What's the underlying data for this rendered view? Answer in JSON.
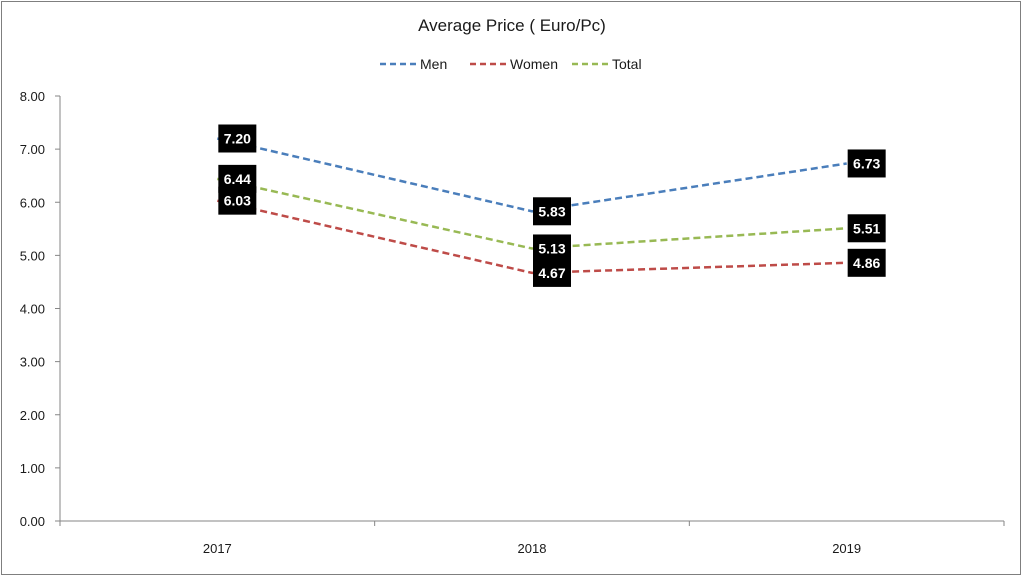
{
  "chart_data": {
    "type": "line",
    "title": "Average Price ( Euro/Pc)",
    "xlabel": "",
    "ylabel": "",
    "categories": [
      "2017",
      "2018",
      "2019"
    ],
    "ylim": [
      0,
      8
    ],
    "yticks": [
      "0.00",
      "1.00",
      "2.00",
      "3.00",
      "4.00",
      "5.00",
      "6.00",
      "7.00",
      "8.00"
    ],
    "grid": false,
    "legend_position": "top-center",
    "line_style": "dashed",
    "series": [
      {
        "name": "Men",
        "color": "#4a7ebb",
        "values": [
          7.2,
          5.83,
          6.73
        ],
        "labels": [
          "7.20",
          "5.83",
          "6.73"
        ]
      },
      {
        "name": "Women",
        "color": "#be4b48",
        "values": [
          6.03,
          4.67,
          4.86
        ],
        "labels": [
          "6.03",
          "4.67",
          "4.86"
        ]
      },
      {
        "name": "Total",
        "color": "#98b954",
        "values": [
          6.44,
          5.13,
          5.51
        ],
        "labels": [
          "6.44",
          "5.13",
          "5.51"
        ]
      }
    ],
    "data_label_style": {
      "background": "#000000",
      "color": "#ffffff"
    }
  }
}
